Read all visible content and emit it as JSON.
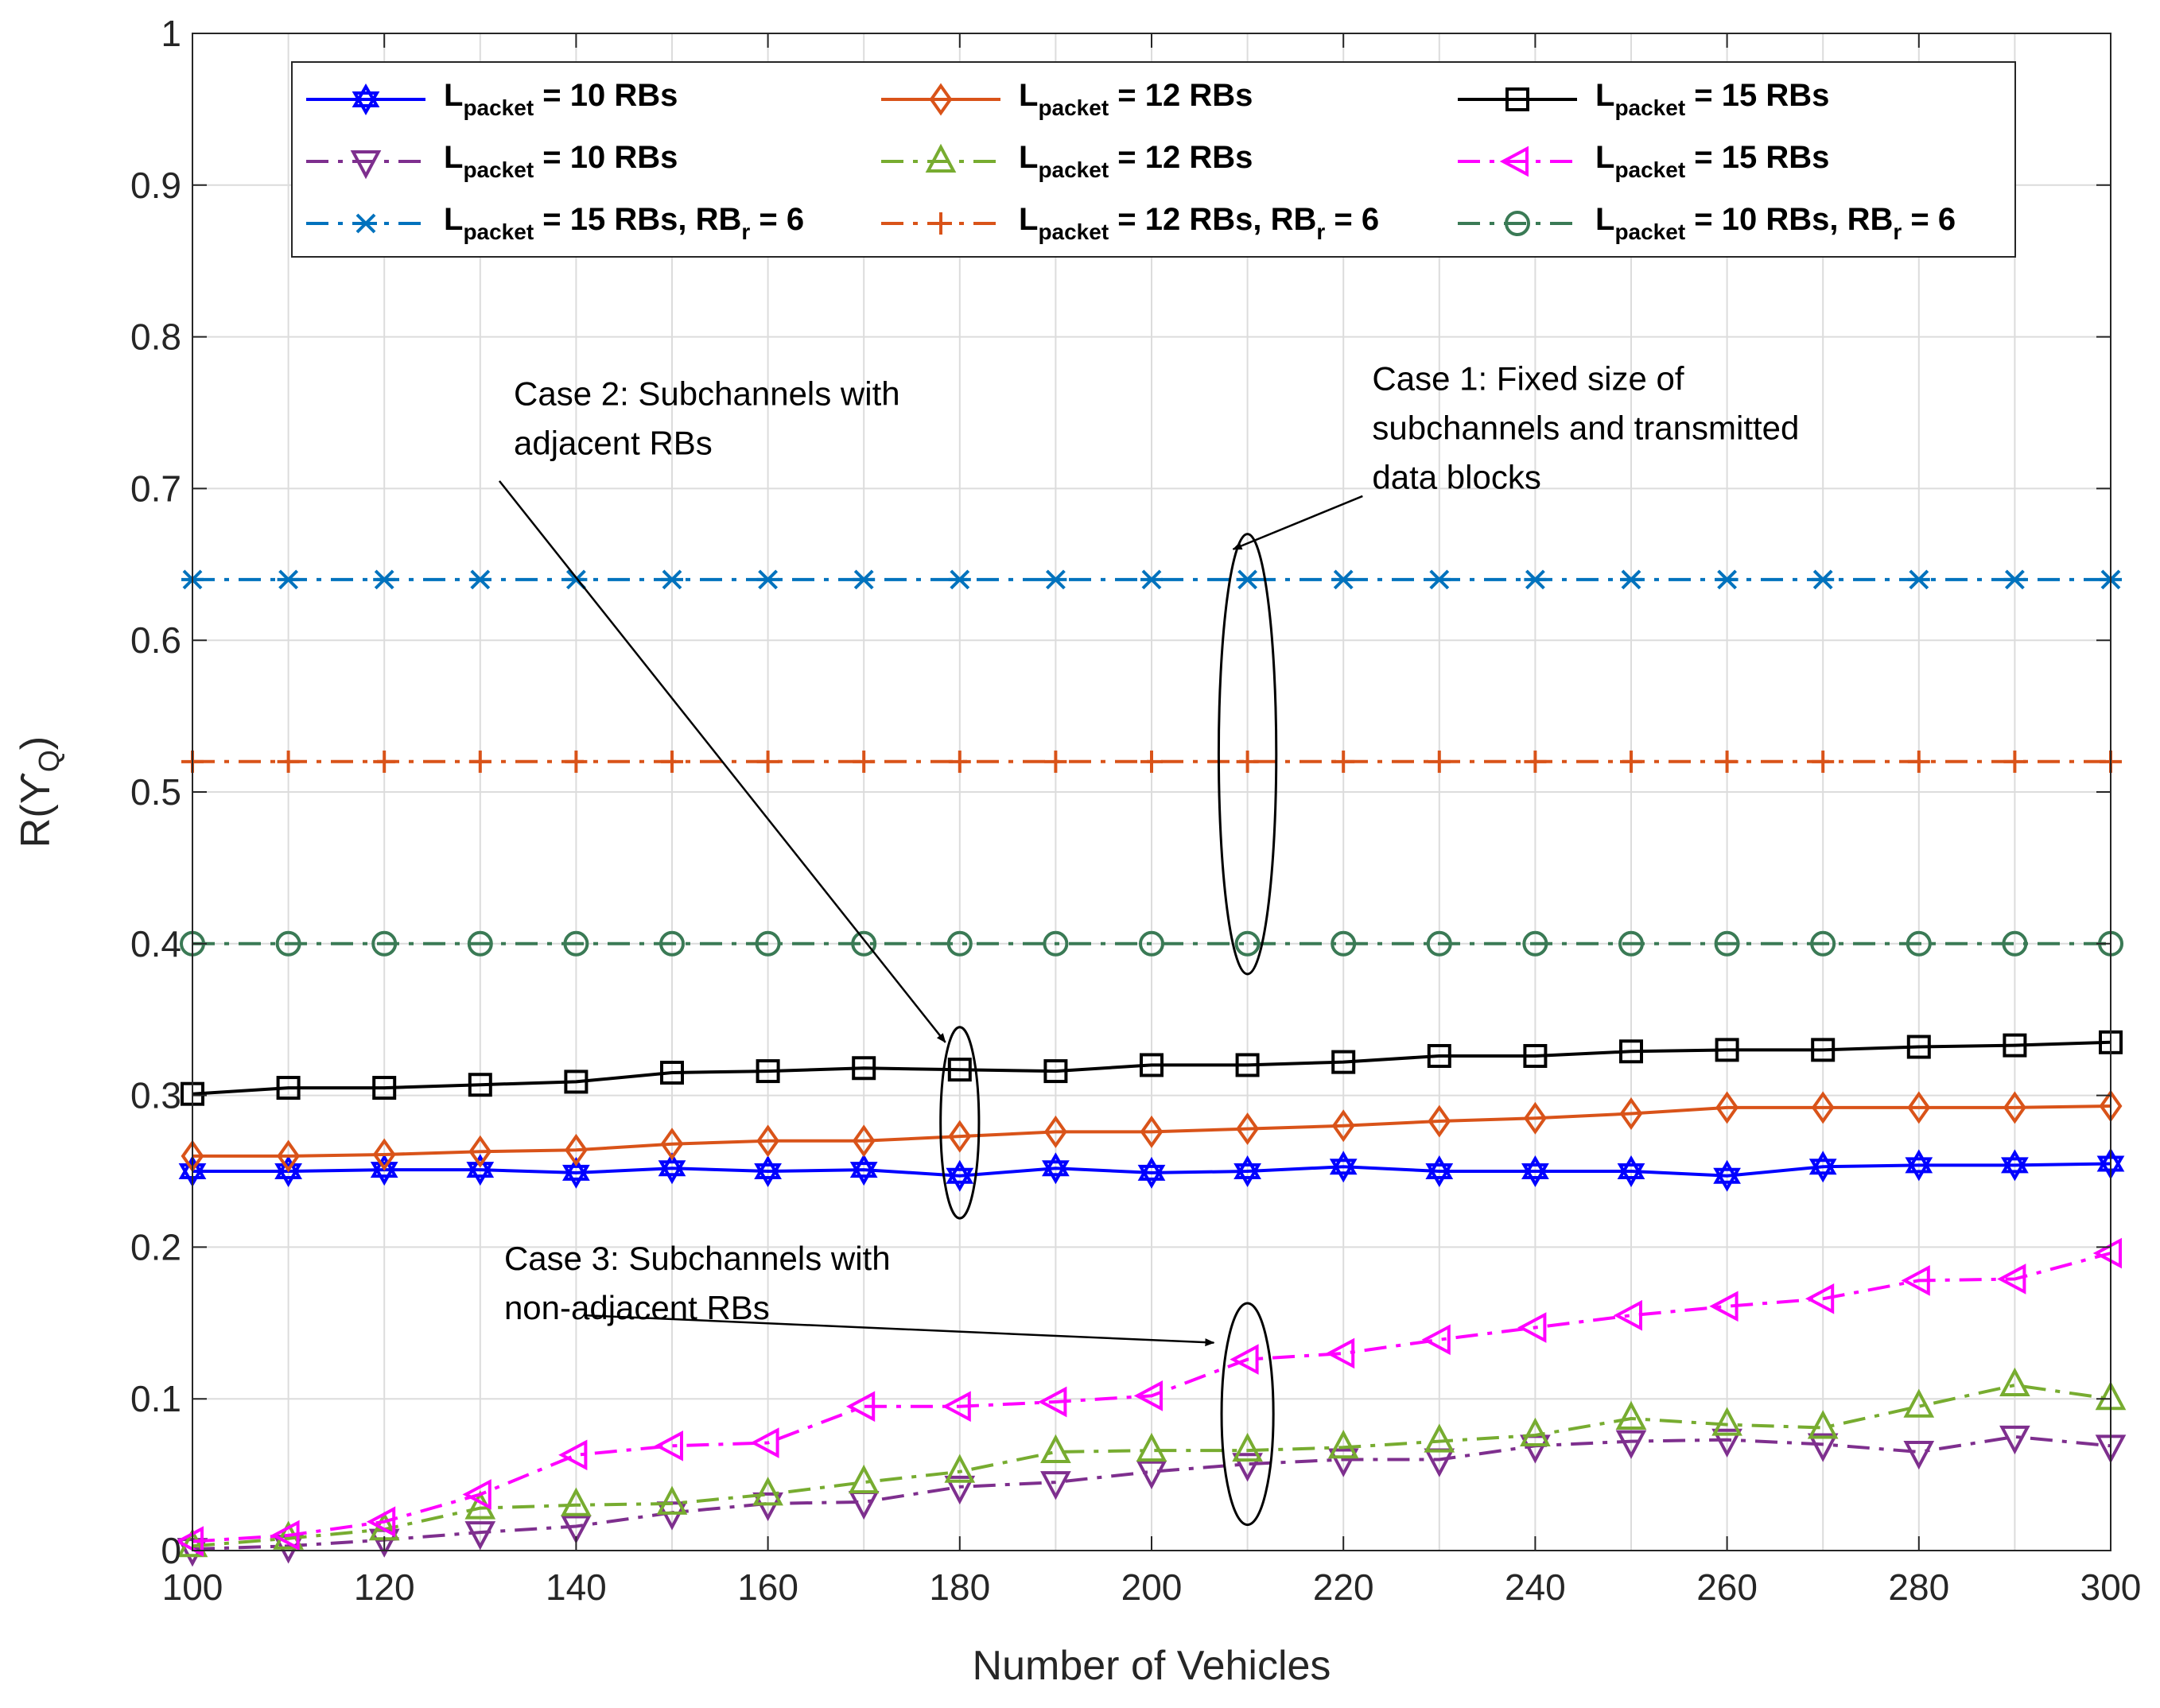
{
  "chart_data": {
    "type": "line",
    "title": "",
    "xlabel": "Number of Vehicles",
    "ylabel": {
      "base": "R(ϒ",
      "sub": "Q",
      "close": ")"
    },
    "xlim": [
      100,
      300
    ],
    "ylim": [
      0,
      1
    ],
    "xticks": [
      "100",
      "120",
      "140",
      "160",
      "180",
      "200",
      "220",
      "240",
      "260",
      "280",
      "300"
    ],
    "yticks": [
      "0",
      "0.1",
      "0.2",
      "0.3",
      "0.4",
      "0.5",
      "0.6",
      "0.7",
      "0.8",
      "0.9",
      "1"
    ],
    "grid": true,
    "legend_position": "top",
    "x": [
      100,
      110,
      120,
      130,
      140,
      150,
      160,
      170,
      180,
      190,
      200,
      210,
      220,
      230,
      240,
      250,
      260,
      270,
      280,
      290,
      300
    ],
    "series": [
      {
        "name": "L_packet = 10 RBs",
        "label": {
          "main": "L",
          "sub": "packet",
          "rest": " = 10 RBs"
        },
        "color": "#0000ff",
        "dash": "solid",
        "marker": "hexagram",
        "values": [
          0.25,
          0.25,
          0.251,
          0.251,
          0.249,
          0.252,
          0.25,
          0.251,
          0.247,
          0.252,
          0.249,
          0.25,
          0.253,
          0.25,
          0.25,
          0.25,
          0.247,
          0.253,
          0.254,
          0.254,
          0.255
        ]
      },
      {
        "name": "L_packet = 12 RBs",
        "label": {
          "main": "L",
          "sub": "packet",
          "rest": " = 12 RBs"
        },
        "color": "#d95319",
        "dash": "solid",
        "marker": "diamond",
        "values": [
          0.26,
          0.26,
          0.261,
          0.263,
          0.264,
          0.268,
          0.27,
          0.27,
          0.273,
          0.276,
          0.276,
          0.278,
          0.28,
          0.283,
          0.285,
          0.288,
          0.292,
          0.292,
          0.292,
          0.292,
          0.293
        ]
      },
      {
        "name": "L_packet = 15 RBs",
        "label": {
          "main": "L",
          "sub": "packet",
          "rest": " = 15 RBs"
        },
        "color": "#000000",
        "dash": "solid",
        "marker": "square",
        "values": [
          0.301,
          0.305,
          0.305,
          0.307,
          0.309,
          0.315,
          0.316,
          0.318,
          0.317,
          0.316,
          0.32,
          0.32,
          0.322,
          0.326,
          0.326,
          0.329,
          0.33,
          0.33,
          0.332,
          0.333,
          0.335
        ]
      },
      {
        "name": "L_packet = 10 RBs (case 3)",
        "label": {
          "main": "L",
          "sub": "packet",
          "rest": " = 10 RBs"
        },
        "color": "#7e2f8e",
        "dash": "dashdot",
        "marker": "triangle-down",
        "values": [
          0.001,
          0.003,
          0.007,
          0.012,
          0.016,
          0.025,
          0.031,
          0.032,
          0.042,
          0.045,
          0.052,
          0.057,
          0.06,
          0.06,
          0.069,
          0.072,
          0.073,
          0.07,
          0.065,
          0.075,
          0.069
        ]
      },
      {
        "name": "L_packet = 12 RBs (case 3)",
        "label": {
          "main": "L",
          "sub": "packet",
          "rest": " = 12 RBs"
        },
        "color": "#77ac30",
        "dash": "dashdot",
        "marker": "triangle-up",
        "values": [
          0.003,
          0.008,
          0.014,
          0.028,
          0.03,
          0.031,
          0.037,
          0.045,
          0.052,
          0.065,
          0.066,
          0.066,
          0.068,
          0.072,
          0.076,
          0.087,
          0.083,
          0.081,
          0.095,
          0.109,
          0.1
        ]
      },
      {
        "name": "L_packet = 15 RBs (case 3)",
        "label": {
          "main": "L",
          "sub": "packet",
          "rest": " = 15 RBs"
        },
        "color": "#ff00ff",
        "dash": "dashdot",
        "marker": "triangle-left",
        "values": [
          0.006,
          0.01,
          0.019,
          0.037,
          0.063,
          0.069,
          0.071,
          0.095,
          0.095,
          0.098,
          0.102,
          0.126,
          0.13,
          0.139,
          0.147,
          0.155,
          0.161,
          0.166,
          0.178,
          0.179,
          0.196
        ]
      },
      {
        "name": "L_packet = 15 RBs, RB_r = 6",
        "label": {
          "main": "L",
          "sub": "packet",
          "rest": " = 15 RBs, RB",
          "sub2": "r",
          "rest2": " = 6"
        },
        "color": "#0072bd",
        "dash": "dashdot",
        "marker": "asterisk",
        "values": [
          0.64,
          0.64,
          0.64,
          0.64,
          0.64,
          0.64,
          0.64,
          0.64,
          0.64,
          0.64,
          0.64,
          0.64,
          0.64,
          0.64,
          0.64,
          0.64,
          0.64,
          0.64,
          0.64,
          0.64,
          0.64
        ]
      },
      {
        "name": "L_packet = 12 RBs, RB_r = 6",
        "label": {
          "main": "L",
          "sub": "packet",
          "rest": " = 12 RBs, RB",
          "sub2": "r",
          "rest2": " = 6"
        },
        "color": "#d95319",
        "dash": "dashdot",
        "marker": "plus",
        "values": [
          0.52,
          0.52,
          0.52,
          0.52,
          0.52,
          0.52,
          0.52,
          0.52,
          0.52,
          0.52,
          0.52,
          0.52,
          0.52,
          0.52,
          0.52,
          0.52,
          0.52,
          0.52,
          0.52,
          0.52,
          0.52
        ]
      },
      {
        "name": "L_packet = 10 RBs, RB_r = 6",
        "label": {
          "main": "L",
          "sub": "packet",
          "rest": " = 10 RBs, RB",
          "sub2": "r",
          "rest2": " = 6"
        },
        "color": "#3a7a55",
        "dash": "dashdot",
        "marker": "circle",
        "values": [
          0.4,
          0.4,
          0.4,
          0.4,
          0.4,
          0.4,
          0.4,
          0.4,
          0.4,
          0.4,
          0.4,
          0.4,
          0.4,
          0.4,
          0.4,
          0.4,
          0.4,
          0.4,
          0.4,
          0.4,
          0.4
        ]
      }
    ],
    "annotations": [
      {
        "name": "case-1",
        "lines": [
          "Case 1: Fixed size of",
          "subchannels and transmitted",
          "data blocks"
        ],
        "text_at": [
          223,
          0.765
        ],
        "arrow_from": [
          222,
          0.695
        ],
        "arrow_to": [
          208.5,
          0.66
        ],
        "ellipse": {
          "cx": 210,
          "cy": 0.525,
          "rx": 3,
          "ry": 0.145
        }
      },
      {
        "name": "case-2",
        "lines": [
          "Case 2: Subchannels with",
          "adjacent RBs"
        ],
        "text_at": [
          133.5,
          0.755
        ],
        "arrow_from": [
          132,
          0.705
        ],
        "arrow_to": [
          178.5,
          0.335
        ],
        "ellipse": {
          "cx": 180,
          "cy": 0.282,
          "rx": 2,
          "ry": 0.063
        }
      },
      {
        "name": "case-3",
        "lines": [
          "Case 3: Subchannels with",
          "non-adjacent RBs"
        ],
        "text_at": [
          132.5,
          0.185
        ],
        "arrow_from": [
          141,
          0.155
        ],
        "arrow_to": [
          206.5,
          0.137
        ],
        "ellipse": {
          "cx": 210,
          "cy": 0.09,
          "rx": 2.7,
          "ry": 0.073
        }
      }
    ]
  }
}
